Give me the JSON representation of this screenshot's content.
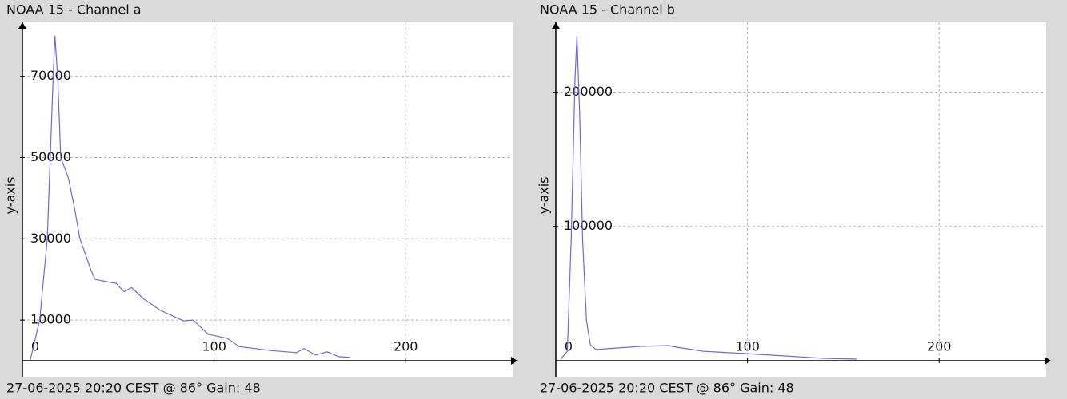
{
  "chart_data": [
    {
      "type": "line",
      "title": "NOAA 15 - Channel a",
      "caption": "27-06-2025 20:20 CEST @ 86° Gain: 48",
      "y_label": "y-axis",
      "x": [
        4,
        9,
        13,
        16,
        17,
        18.5,
        20,
        24,
        27,
        30,
        36,
        38,
        49,
        53,
        57,
        63,
        72,
        84,
        89,
        97,
        107,
        113,
        130,
        143,
        147,
        153,
        159,
        165,
        171
      ],
      "values": [
        0,
        10000,
        30000,
        69000,
        80000,
        69000,
        50000,
        45000,
        38000,
        30000,
        22000,
        20000,
        19000,
        17000,
        18000,
        15300,
        12400,
        9800,
        10000,
        6500,
        5500,
        3500,
        2500,
        2000,
        3000,
        1400,
        2200,
        1000,
        800
      ],
      "color": "#6a6ae0",
      "xlim": [
        0,
        255
      ],
      "ylim": [
        0,
        83300
      ],
      "xticks": [
        0,
        100,
        200
      ],
      "yticks": [
        10000,
        30000,
        50000,
        70000
      ],
      "grid": true
    },
    {
      "type": "line",
      "title": "NOAA 15 - Channel b",
      "caption": "27-06-2025 20:20 CEST @ 86° Gain: 48",
      "y_label": "y-axis",
      "x": [
        2.5,
        6,
        8,
        10,
        11,
        12.5,
        14,
        16,
        18,
        21,
        32,
        44,
        59,
        63,
        77,
        98,
        119,
        140,
        157
      ],
      "values": [
        1200,
        7000,
        90000,
        210000,
        242000,
        180000,
        90000,
        30000,
        12000,
        8300,
        9500,
        10700,
        11300,
        10100,
        7100,
        5400,
        3600,
        1800,
        1200
      ],
      "color": "#6a6ae0",
      "xlim": [
        0,
        255
      ],
      "ylim": [
        0,
        252000
      ],
      "xticks": [
        0,
        100,
        200
      ],
      "yticks": [
        100000,
        200000
      ],
      "grid": true
    }
  ]
}
